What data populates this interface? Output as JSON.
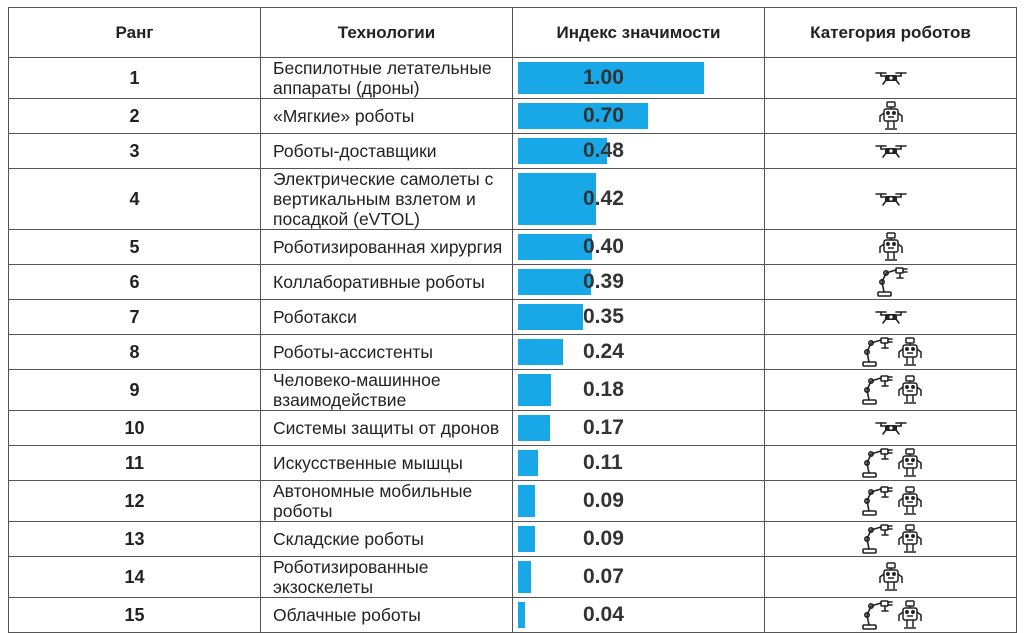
{
  "header": {
    "rank": "Ранг",
    "technologies": "Технологии",
    "index": "Индекс значимости",
    "category": "Категория роботов"
  },
  "rows": [
    {
      "rank": "1",
      "tech": "Беспилотные летательные аппараты (дроны)",
      "value": "1.00",
      "score": 1.0,
      "icons": [
        "drone-icon"
      ]
    },
    {
      "rank": "2",
      "tech": "«Мягкие» роботы",
      "value": "0.70",
      "score": 0.7,
      "icons": [
        "robot-icon"
      ]
    },
    {
      "rank": "3",
      "tech": "Роботы-доставщики",
      "value": "0.48",
      "score": 0.48,
      "icons": [
        "drone-icon"
      ]
    },
    {
      "rank": "4",
      "tech": "Электрические самолеты с вертикальным взлетом и посадкой (eVTOL)",
      "value": "0.42",
      "score": 0.42,
      "icons": [
        "drone-icon"
      ]
    },
    {
      "rank": "5",
      "tech": "Роботизированная хирургия",
      "value": "0.40",
      "score": 0.4,
      "icons": [
        "robot-icon"
      ]
    },
    {
      "rank": "6",
      "tech": "Коллаборативные роботы",
      "value": "0.39",
      "score": 0.39,
      "icons": [
        "robot-arm-icon"
      ]
    },
    {
      "rank": "7",
      "tech": "Роботакси",
      "value": "0.35",
      "score": 0.35,
      "icons": [
        "drone-icon"
      ]
    },
    {
      "rank": "8",
      "tech": "Роботы-ассистенты",
      "value": "0.24",
      "score": 0.24,
      "icons": [
        "robot-arm-icon",
        "robot-icon"
      ]
    },
    {
      "rank": "9",
      "tech": "Человеко-машинное взаимодействие",
      "value": "0.18",
      "score": 0.18,
      "icons": [
        "robot-arm-icon",
        "robot-icon"
      ]
    },
    {
      "rank": "10",
      "tech": "Системы защиты от дронов",
      "value": "0.17",
      "score": 0.17,
      "icons": [
        "drone-icon"
      ]
    },
    {
      "rank": "11",
      "tech": "Искусственные мышцы",
      "value": "0.11",
      "score": 0.11,
      "icons": [
        "robot-arm-icon",
        "robot-icon"
      ]
    },
    {
      "rank": "12",
      "tech": "Автономные мобильные роботы",
      "value": "0.09",
      "score": 0.09,
      "icons": [
        "robot-arm-icon",
        "robot-icon"
      ]
    },
    {
      "rank": "13",
      "tech": "Складские роботы",
      "value": "0.09",
      "score": 0.09,
      "icons": [
        "robot-arm-icon",
        "robot-icon"
      ]
    },
    {
      "rank": "14",
      "tech": "Роботизированные экзоскелеты",
      "value": "0.07",
      "score": 0.07,
      "icons": [
        "robot-icon"
      ]
    },
    {
      "rank": "15",
      "tech": "Облачные роботы",
      "value": "0.04",
      "score": 0.04,
      "icons": [
        "robot-arm-icon",
        "robot-icon"
      ]
    }
  ],
  "colors": {
    "bar": "#18a7e7"
  }
}
